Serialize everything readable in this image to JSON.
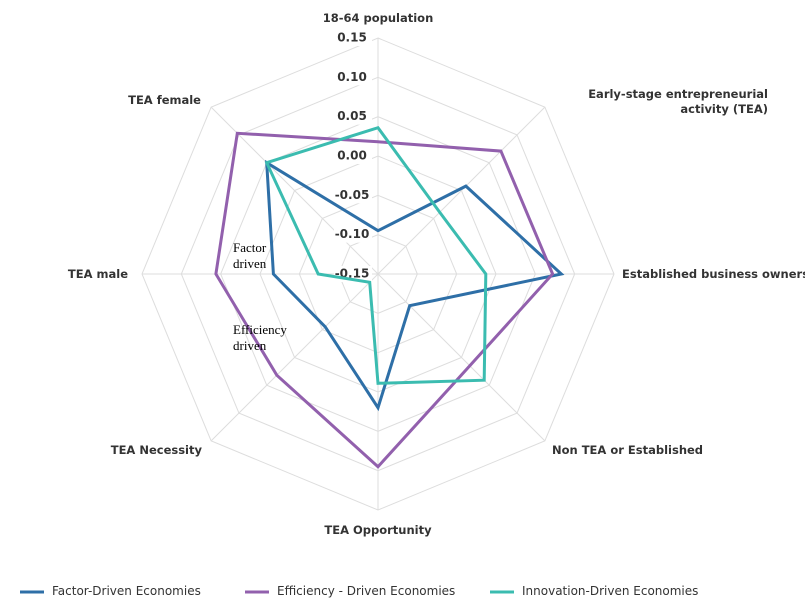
{
  "chart_data": {
    "type": "radar",
    "axes": [
      "18-64 population",
      "Early-stage entrepreneurial activity (TEA)",
      "Established business ownership",
      "Non TEA or Established",
      "TEA Opportunity",
      "TEA Necessity",
      "TEA male",
      "TEA female"
    ],
    "rlim": [
      -0.15,
      0.15
    ],
    "rticks": [
      {
        "value": 0.15,
        "label": "0.15"
      },
      {
        "value": 0.1,
        "label": "0.10"
      },
      {
        "value": 0.05,
        "label": "0.05"
      },
      {
        "value": 0,
        "label": "0.00"
      },
      {
        "value": -0.05,
        "label": "-0.05"
      },
      {
        "value": -0.1,
        "label": "-0.10"
      },
      {
        "value": -0.15,
        "label": "-0.15"
      }
    ],
    "series": [
      {
        "name": "Factor-Driven Economies",
        "color": "#2e6fa7",
        "values": [
          -0.095,
          0.008,
          0.083,
          -0.093,
          0.02,
          -0.055,
          -0.017,
          0.05
        ]
      },
      {
        "name": "Efficiency - Driven Economies",
        "color": "#9260ad",
        "values": [
          0.018,
          0.071,
          0.072,
          0.015,
          0.095,
          0.032,
          0.056,
          0.103
        ]
      },
      {
        "name": "Innovation-Driven Economies",
        "color": "#3bbcb0",
        "values": [
          0.036,
          -0.039,
          -0.013,
          0.041,
          -0.011,
          -0.135,
          -0.074,
          0.05
        ]
      }
    ],
    "annotations": [
      "Factor driven",
      "Efficiency driven"
    ],
    "grid": true
  }
}
